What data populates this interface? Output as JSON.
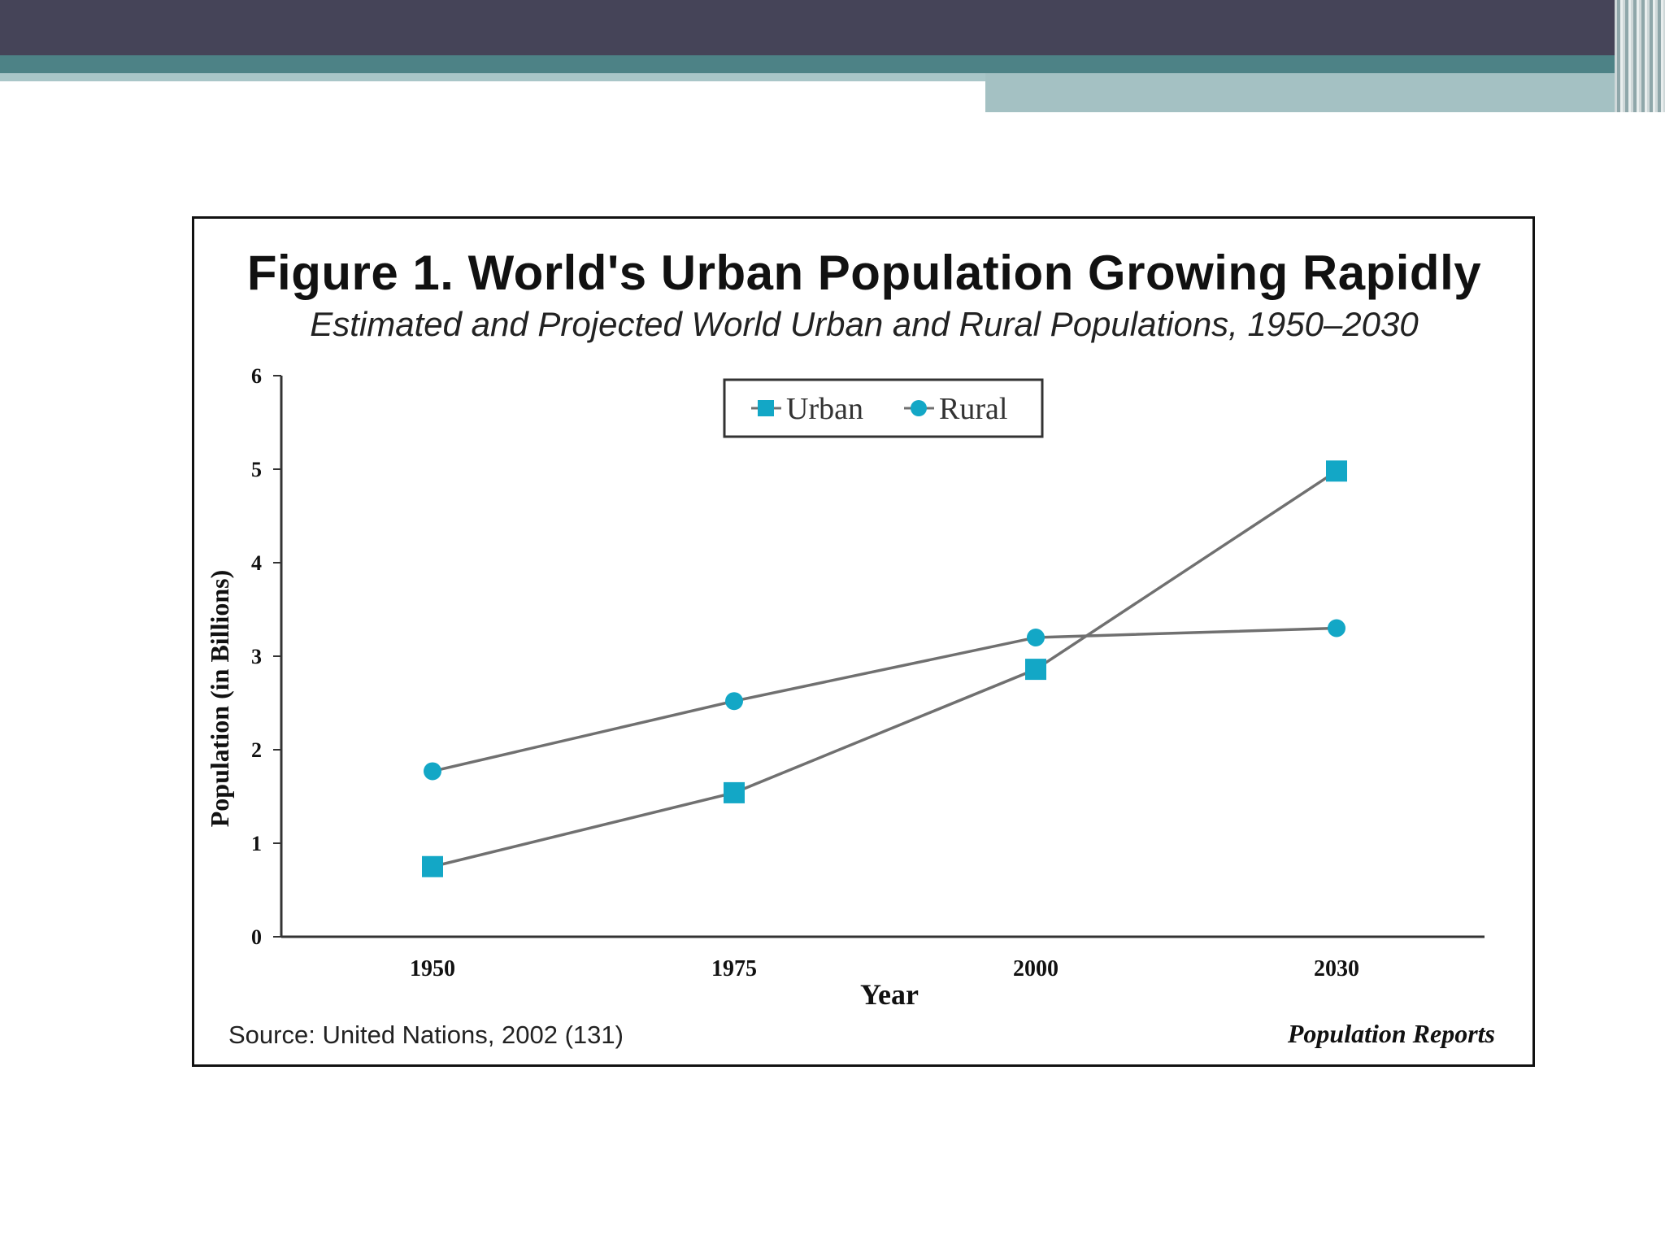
{
  "figure": {
    "title": "Figure 1. World's Urban Population Growing Rapidly",
    "subtitle": "Estimated and Projected World Urban and Rural Populations, 1950–2030",
    "source": "Source: United Nations, 2002 (131)",
    "publisher": "Population Reports"
  },
  "colors": {
    "marker": "#13a7c6",
    "line": "#707070",
    "header_dark": "#454458",
    "header_teal": "#4d8286"
  },
  "chart_data": {
    "type": "line",
    "title": "Figure 1. World's Urban Population Growing Rapidly",
    "subtitle": "Estimated and Projected World Urban and Rural Populations, 1950–2030",
    "xlabel": "Year",
    "ylabel": "Population (in Billions)",
    "categories": [
      "1950",
      "1975",
      "2000",
      "2030"
    ],
    "ylim": [
      0,
      6
    ],
    "yticks": [
      "0",
      "1",
      "2",
      "3",
      "4",
      "5",
      "6"
    ],
    "grid": false,
    "legend": "top-center",
    "series": [
      {
        "name": "Urban",
        "marker": "square",
        "values": [
          0.75,
          1.54,
          2.86,
          4.98
        ]
      },
      {
        "name": "Rural",
        "marker": "circle",
        "values": [
          1.77,
          2.52,
          3.2,
          3.3
        ]
      }
    ]
  }
}
